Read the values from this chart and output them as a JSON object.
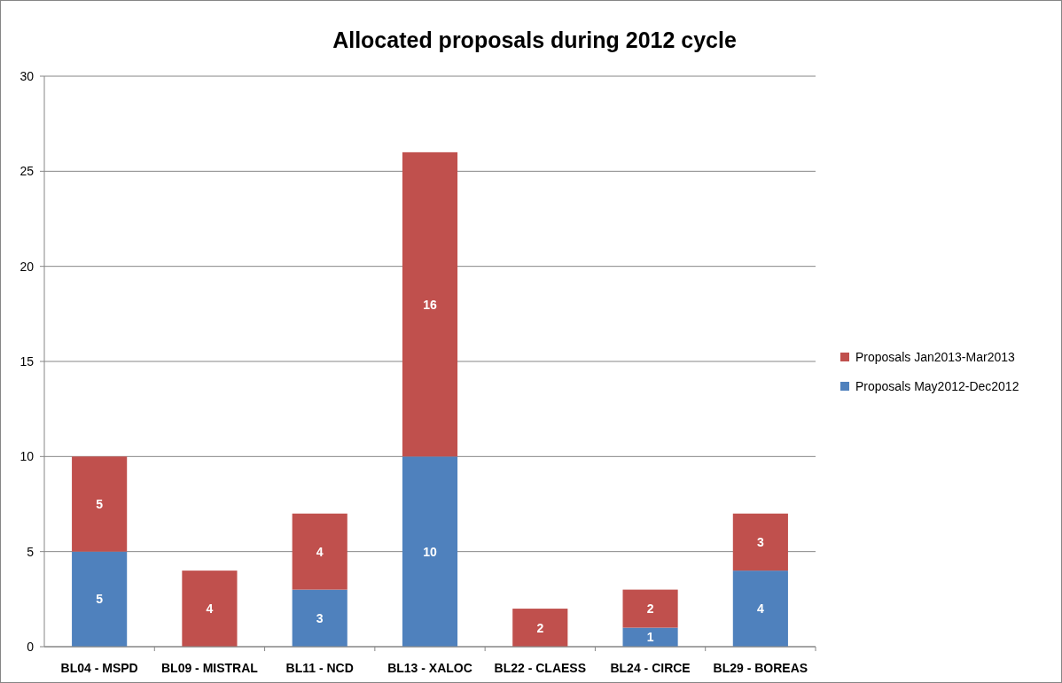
{
  "chart_data": {
    "type": "bar",
    "title": "Allocated proposals during 2012 cycle",
    "categories": [
      "BL04 - MSPD",
      "BL09 - MISTRAL",
      "BL11 - NCD",
      "BL13 - XALOC",
      "BL22 - CLAESS",
      "BL24 - CIRCE",
      "BL29 - BOREAS"
    ],
    "stacked": true,
    "series": [
      {
        "name": "Proposals May2012-Dec2012",
        "color": "#4f81bd",
        "values": [
          5,
          0,
          3,
          10,
          0,
          1,
          4
        ],
        "value_labels": [
          "5",
          null,
          "3",
          "10",
          null,
          "1",
          "4"
        ]
      },
      {
        "name": "Proposals Jan2013-Mar2013",
        "color": "#c0504d",
        "values": [
          5,
          4,
          4,
          16,
          2,
          2,
          3
        ],
        "value_labels": [
          "5",
          "4",
          "4",
          "16",
          "2",
          "2",
          "3"
        ]
      }
    ],
    "ylim": [
      0,
      30
    ],
    "yticks": [
      0,
      5,
      10,
      15,
      20,
      25,
      30
    ],
    "grid": "y",
    "legend": "right"
  }
}
